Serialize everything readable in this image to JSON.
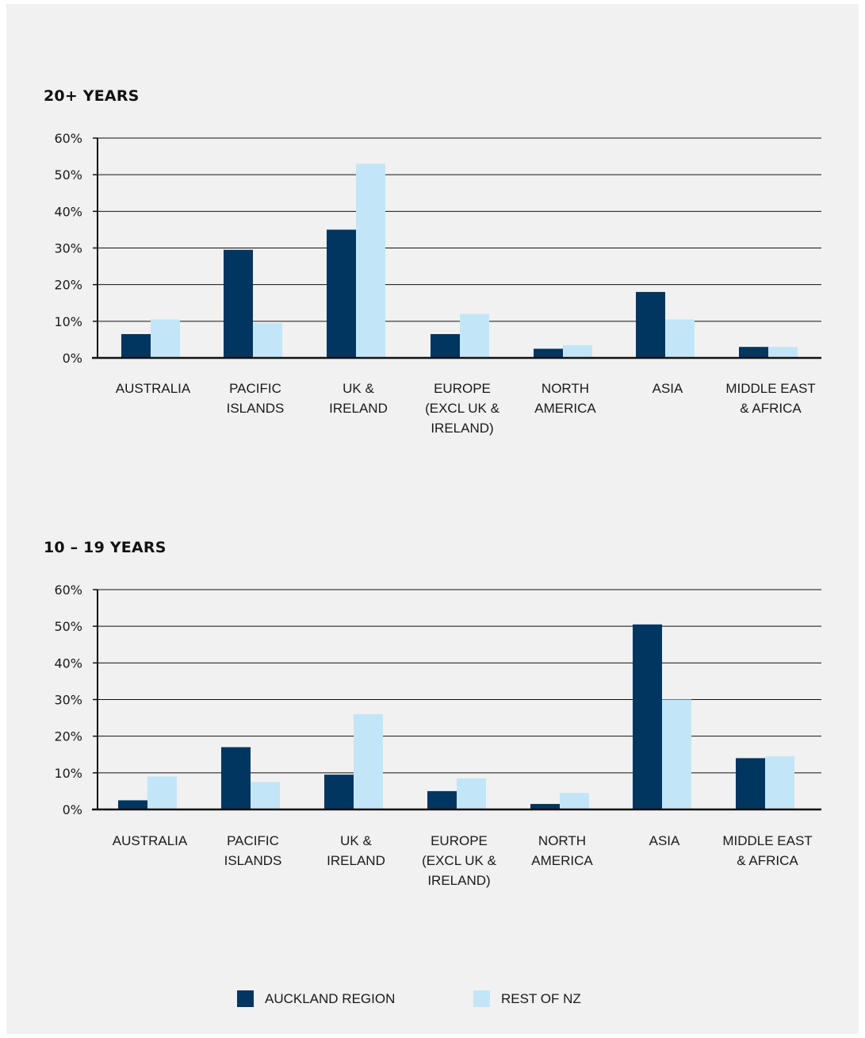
{
  "colors": {
    "auckland": "#00365f",
    "rest": "#c2e6f7",
    "axis": "#111111",
    "text": "#1a1a1a"
  },
  "legend": {
    "items": [
      {
        "label": "AUCKLAND REGION",
        "color": "#00365f"
      },
      {
        "label": "REST OF NZ",
        "color": "#c2e6f7"
      }
    ]
  },
  "chart_data": [
    {
      "type": "bar",
      "title": "20+ YEARS",
      "categories": [
        [
          "AUSTRALIA"
        ],
        [
          "PACIFIC",
          "ISLANDS"
        ],
        [
          "UK &",
          "IRELAND"
        ],
        [
          "EUROPE",
          "(EXCL UK &",
          "IRELAND)"
        ],
        [
          "NORTH",
          "AMERICA"
        ],
        [
          "ASIA"
        ],
        [
          "MIDDLE EAST",
          "& AFRICA"
        ]
      ],
      "series": [
        {
          "name": "AUCKLAND REGION",
          "values": [
            6.5,
            29.5,
            35,
            6.5,
            2.5,
            18,
            3
          ]
        },
        {
          "name": "REST OF NZ",
          "values": [
            10.5,
            9.5,
            53,
            12,
            3.5,
            10.5,
            3
          ]
        }
      ],
      "ylim": [
        0,
        60
      ],
      "yticks": [
        "0%",
        "10%",
        "20%",
        "30%",
        "40%",
        "50%",
        "60%"
      ],
      "grid": true
    },
    {
      "type": "bar",
      "title": "10 – 19 YEARS",
      "categories": [
        [
          "AUSTRALIA"
        ],
        [
          "PACIFIC",
          "ISLANDS"
        ],
        [
          "UK &",
          "IRELAND"
        ],
        [
          "EUROPE",
          "(EXCL UK &",
          "IRELAND)"
        ],
        [
          "NORTH",
          "AMERICA"
        ],
        [
          "ASIA"
        ],
        [
          "MIDDLE EAST",
          "& AFRICA"
        ]
      ],
      "series": [
        {
          "name": "AUCKLAND REGION",
          "values": [
            2.5,
            17,
            9.5,
            5,
            1.5,
            50.5,
            14
          ]
        },
        {
          "name": "REST OF NZ",
          "values": [
            9,
            7.5,
            26,
            8.5,
            4.5,
            30,
            14.5
          ]
        }
      ],
      "ylim": [
        0,
        60
      ],
      "yticks": [
        "0%",
        "10%",
        "20%",
        "30%",
        "40%",
        "50%",
        "60%"
      ],
      "grid": true
    }
  ]
}
